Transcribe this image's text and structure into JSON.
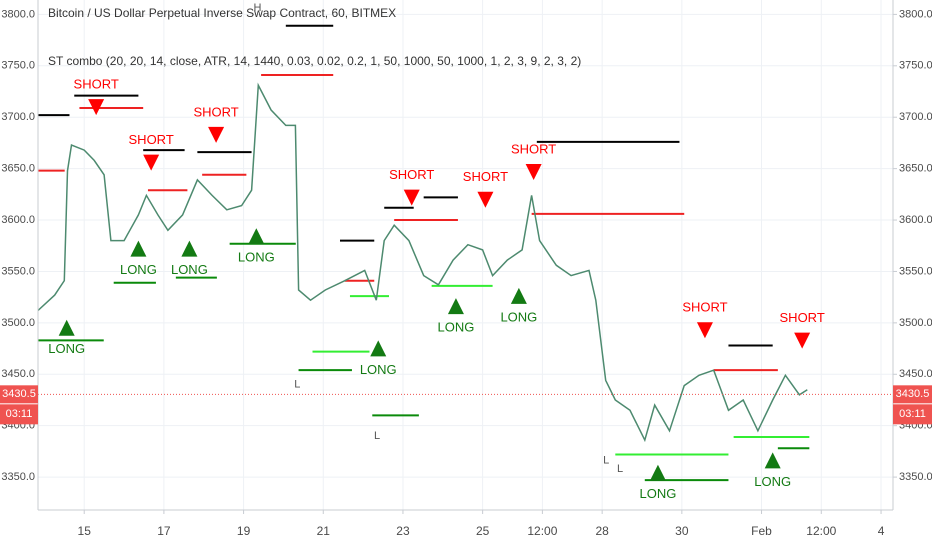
{
  "chart_data": {
    "type": "line",
    "title": "Bitcoin / US Dollar Perpetual Inverse Swap Contract, 60, BITMEX",
    "subtitle": "ST combo (20, 20, 14, close, ATR, 14, 1440, 0.03, 0.02, 0.2, 1, 50, 1000, 50, 1000, 1, 2, 3, 9, 2, 3, 2)",
    "color": "#4d8a6f",
    "grid": true,
    "xlim": [
      13.84,
      35.3
    ],
    "ylim": [
      3318,
      3814
    ],
    "xticks": [
      15,
      17,
      19,
      21,
      23,
      25,
      {
        "value": 26.5,
        "label": "12:00"
      },
      28,
      30,
      {
        "value": 32,
        "label": "Feb"
      },
      {
        "value": 33.5,
        "label": "12:00"
      },
      {
        "value": 35,
        "label": "4"
      }
    ],
    "yticks": [
      {
        "value": 3350,
        "label": "3350.0"
      },
      {
        "value": 3400,
        "label": "3400.0"
      },
      {
        "value": 3450,
        "label": "3450.0"
      },
      {
        "value": 3500,
        "label": "3500.0"
      },
      {
        "value": 3550,
        "label": "3550.0"
      },
      {
        "value": 3600,
        "label": "3600.0"
      },
      {
        "value": 3650,
        "label": "3650.0"
      },
      {
        "value": 3700,
        "label": "3700.0"
      },
      {
        "value": 3750,
        "label": "3750.0"
      },
      {
        "value": 3800,
        "label": "3800.0"
      }
    ],
    "x": [
      13.84,
      14.26,
      14.5,
      14.58,
      14.68,
      15.0,
      15.25,
      15.5,
      15.67,
      16.0,
      16.36,
      16.56,
      16.85,
      17.1,
      17.47,
      17.84,
      18.21,
      18.58,
      18.95,
      19.2,
      19.37,
      19.69,
      20.06,
      20.3,
      20.38,
      20.68,
      21.05,
      21.54,
      22.04,
      22.33,
      22.53,
      22.78,
      23.15,
      23.52,
      23.89,
      24.26,
      24.63,
      25.0,
      25.25,
      25.62,
      25.99,
      26.23,
      26.43,
      26.85,
      27.22,
      27.67,
      27.84,
      28.09,
      28.33,
      28.7,
      29.07,
      29.32,
      29.69,
      30.06,
      30.43,
      30.8,
      31.17,
      31.54,
      31.91,
      32.28,
      32.6,
      32.95,
      33.15
    ],
    "values": [
      3512,
      3527,
      3541,
      3648,
      3673,
      3668,
      3658,
      3644,
      3580,
      3580,
      3605,
      3624,
      3605,
      3590,
      3605,
      3639,
      3624,
      3610,
      3614,
      3629,
      3731,
      3707,
      3692,
      3692,
      3532,
      3522,
      3532,
      3541,
      3551,
      3522,
      3580,
      3595,
      3580,
      3546,
      3537,
      3561,
      3576,
      3571,
      3546,
      3561,
      3571,
      3624,
      3580,
      3556,
      3546,
      3551,
      3522,
      3444,
      3425,
      3415,
      3386,
      3420,
      3395,
      3439,
      3449,
      3454,
      3415,
      3425,
      3395,
      3425,
      3449,
      3430,
      3435
    ],
    "level_groups": [
      {
        "color": "#000000",
        "segments": [
          {
            "x": [
              13.84,
              14.63
            ],
            "y": 3702
          },
          {
            "x": [
              14.75,
              16.36
            ],
            "y": 3721
          },
          {
            "x": [
              16.48,
              17.52
            ],
            "y": 3668
          },
          {
            "x": [
              17.84,
              19.2
            ],
            "y": 3666
          },
          {
            "x": [
              20.06,
              21.25
            ],
            "y": 3789
          },
          {
            "x": [
              21.42,
              22.28
            ],
            "y": 3580
          },
          {
            "x": [
              22.53,
              23.27
            ],
            "y": 3612
          },
          {
            "x": [
              23.52,
              24.38
            ],
            "y": 3622
          },
          {
            "x": [
              26.36,
              29.94
            ],
            "y": 3676
          },
          {
            "x": [
              31.17,
              32.28
            ],
            "y": 3478
          }
        ]
      },
      {
        "color": "#ee2222",
        "segments": [
          {
            "x": [
              13.84,
              14.51
            ],
            "y": 3648
          },
          {
            "x": [
              14.88,
              16.48
            ],
            "y": 3709
          },
          {
            "x": [
              16.6,
              17.59
            ],
            "y": 3629
          },
          {
            "x": [
              17.96,
              19.07
            ],
            "y": 3644
          },
          {
            "x": [
              19.44,
              21.25
            ],
            "y": 3741
          },
          {
            "x": [
              21.54,
              22.28
            ],
            "y": 3541
          },
          {
            "x": [
              22.78,
              24.38
            ],
            "y": 3600
          },
          {
            "x": [
              26.23,
              30.06
            ],
            "y": 3606
          },
          {
            "x": [
              30.8,
              32.41
            ],
            "y": 3454
          }
        ]
      },
      {
        "color": "#0a8a0a",
        "segments": [
          {
            "x": [
              13.84,
              15.49
            ],
            "y": 3483
          },
          {
            "x": [
              15.74,
              16.8
            ],
            "y": 3539
          },
          {
            "x": [
              17.3,
              18.33
            ],
            "y": 3544
          },
          {
            "x": [
              18.65,
              20.31
            ],
            "y": 3577
          },
          {
            "x": [
              20.38,
              21.72
            ],
            "y": 3454
          },
          {
            "x": [
              22.23,
              23.4
            ],
            "y": 3410
          },
          {
            "x": [
              29.07,
              31.17
            ],
            "y": 3347
          },
          {
            "x": [
              32.41,
              33.2
            ],
            "y": 3378
          }
        ]
      },
      {
        "color": "#33ee33",
        "segments": [
          {
            "x": [
              20.73,
              22.16
            ],
            "y": 3472
          },
          {
            "x": [
              21.67,
              22.65
            ],
            "y": 3526
          },
          {
            "x": [
              23.72,
              25.25
            ],
            "y": 3536
          },
          {
            "x": [
              28.33,
              31.17
            ],
            "y": 3372
          },
          {
            "x": [
              31.3,
              33.2
            ],
            "y": 3389
          }
        ]
      }
    ],
    "short_signals": {
      "color": "#ff0000",
      "points": [
        {
          "text": "SHORT",
          "x": 15.3,
          "y": 3702
        },
        {
          "text": "SHORT",
          "x": 16.68,
          "y": 3648
        },
        {
          "text": "SHORT",
          "x": 18.31,
          "y": 3675
        },
        {
          "text": "SHORT",
          "x": 23.22,
          "y": 3614
        },
        {
          "text": "SHORT",
          "x": 25.07,
          "y": 3612
        },
        {
          "text": "SHORT",
          "x": 26.28,
          "y": 3639
        },
        {
          "text": "SHORT",
          "x": 30.58,
          "y": 3485
        },
        {
          "text": "SHORT",
          "x": 33.02,
          "y": 3475
        }
      ]
    },
    "long_signals": {
      "color": "#137a13",
      "points": [
        {
          "text": "LONG",
          "x": 14.56,
          "y": 3503
        },
        {
          "text": "LONG",
          "x": 16.36,
          "y": 3580
        },
        {
          "text": "LONG",
          "x": 17.64,
          "y": 3580
        },
        {
          "text": "LONG",
          "x": 19.32,
          "y": 3592
        },
        {
          "text": "LONG",
          "x": 22.38,
          "y": 3483
        },
        {
          "text": "LONG",
          "x": 24.33,
          "y": 3524
        },
        {
          "text": "LONG",
          "x": 25.91,
          "y": 3534
        },
        {
          "text": "LONG",
          "x": 29.4,
          "y": 3362
        },
        {
          "text": "LONG",
          "x": 32.28,
          "y": 3374
        }
      ]
    },
    "extremes": [
      {
        "text": "H",
        "x": 19.35,
        "y": 3806
      },
      {
        "text": "L",
        "x": 20.35,
        "y": 3440
      },
      {
        "text": "L",
        "x": 22.35,
        "y": 3390
      },
      {
        "text": "L",
        "x": 28.1,
        "y": 3366
      },
      {
        "text": "L",
        "x": 28.45,
        "y": 3358
      }
    ],
    "last_price": 3430.5,
    "countdown": "03:11"
  }
}
